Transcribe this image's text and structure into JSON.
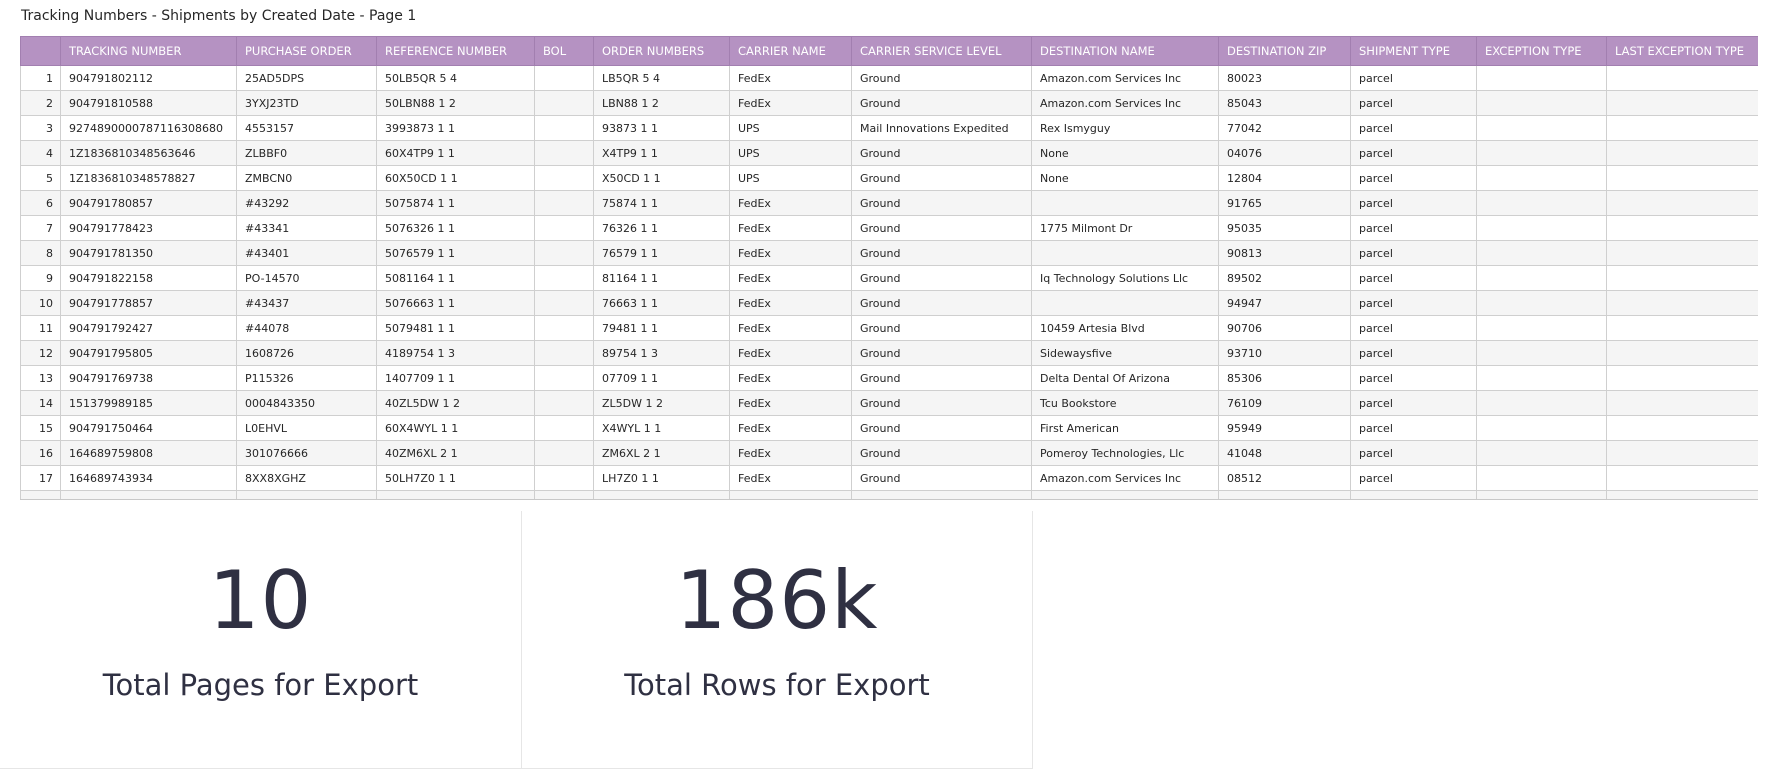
{
  "report": {
    "title": "Tracking Numbers - Shipments by Created Date - Page 1"
  },
  "table": {
    "columns": [
      "",
      "TRACKING NUMBER",
      "PURCHASE ORDER",
      "REFERENCE NUMBER",
      "BOL",
      "ORDER NUMBERS",
      "CARRIER NAME",
      "CARRIER SERVICE LEVEL",
      "DESTINATION NAME",
      "DESTINATION ZIP",
      "SHIPMENT TYPE",
      "EXCEPTION TYPE",
      "LAST EXCEPTION TYPE"
    ],
    "rows": [
      [
        "1",
        "904791802112",
        "25AD5DPS",
        "50LB5QR 5 4",
        "",
        "LB5QR 5 4",
        "FedEx",
        "Ground",
        "Amazon.com Services Inc",
        "80023",
        "parcel",
        "",
        ""
      ],
      [
        "2",
        "904791810588",
        "3YXJ23TD",
        "50LBN88 1 2",
        "",
        "LBN88 1 2",
        "FedEx",
        "Ground",
        "Amazon.com Services Inc",
        "85043",
        "parcel",
        "",
        ""
      ],
      [
        "3",
        "9274890000787116308680",
        "4553157",
        "3993873 1 1",
        "",
        "93873 1 1",
        "UPS",
        "Mail Innovations Expedited",
        "Rex Ismyguy",
        "77042",
        "parcel",
        "",
        ""
      ],
      [
        "4",
        "1Z1836810348563646",
        "ZLBBF0",
        "60X4TP9 1 1",
        "",
        "X4TP9 1 1",
        "UPS",
        "Ground",
        "None",
        "04076",
        "parcel",
        "",
        ""
      ],
      [
        "5",
        "1Z1836810348578827",
        "ZMBCN0",
        "60X50CD 1 1",
        "",
        "X50CD 1 1",
        "UPS",
        "Ground",
        "None",
        "12804",
        "parcel",
        "",
        ""
      ],
      [
        "6",
        "904791780857",
        "#43292",
        "5075874 1 1",
        "",
        "75874 1 1",
        "FedEx",
        "Ground",
        "",
        "91765",
        "parcel",
        "",
        ""
      ],
      [
        "7",
        "904791778423",
        "#43341",
        "5076326 1 1",
        "",
        "76326 1 1",
        "FedEx",
        "Ground",
        "1775 Milmont Dr",
        "95035",
        "parcel",
        "",
        ""
      ],
      [
        "8",
        "904791781350",
        "#43401",
        "5076579 1 1",
        "",
        "76579 1 1",
        "FedEx",
        "Ground",
        "",
        "90813",
        "parcel",
        "",
        ""
      ],
      [
        "9",
        "904791822158",
        "PO-14570",
        "5081164 1 1",
        "",
        "81164 1 1",
        "FedEx",
        "Ground",
        "Iq Technology Solutions Llc",
        "89502",
        "parcel",
        "",
        ""
      ],
      [
        "10",
        "904791778857",
        "#43437",
        "5076663 1 1",
        "",
        "76663 1 1",
        "FedEx",
        "Ground",
        "",
        "94947",
        "parcel",
        "",
        ""
      ],
      [
        "11",
        "904791792427",
        "#44078",
        "5079481 1 1",
        "",
        "79481 1 1",
        "FedEx",
        "Ground",
        "10459 Artesia Blvd",
        "90706",
        "parcel",
        "",
        ""
      ],
      [
        "12",
        "904791795805",
        "1608726",
        "4189754 1 3",
        "",
        "89754 1 3",
        "FedEx",
        "Ground",
        "Sidewaysfive",
        "93710",
        "parcel",
        "",
        ""
      ],
      [
        "13",
        "904791769738",
        "P115326",
        "1407709 1 1",
        "",
        "07709 1 1",
        "FedEx",
        "Ground",
        "Delta Dental Of Arizona",
        "85306",
        "parcel",
        "",
        ""
      ],
      [
        "14",
        "151379989185",
        "0004843350",
        "40ZL5DW 1 2",
        "",
        "ZL5DW 1 2",
        "FedEx",
        "Ground",
        "Tcu Bookstore",
        "76109",
        "parcel",
        "",
        ""
      ],
      [
        "15",
        "904791750464",
        "L0EHVL",
        "60X4WYL 1 1",
        "",
        "X4WYL 1 1",
        "FedEx",
        "Ground",
        "First American",
        "95949",
        "parcel",
        "",
        ""
      ],
      [
        "16",
        "164689759808",
        "301076666",
        "40ZM6XL 2 1",
        "",
        "ZM6XL 2 1",
        "FedEx",
        "Ground",
        "Pomeroy Technologies, Llc",
        "41048",
        "parcel",
        "",
        ""
      ],
      [
        "17",
        "164689743934",
        "8XX8XGHZ",
        "50LH7Z0 1 1",
        "",
        "LH7Z0 1 1",
        "FedEx",
        "Ground",
        "Amazon.com Services Inc",
        "08512",
        "parcel",
        "",
        ""
      ]
    ]
  },
  "tiles": {
    "pages": {
      "value": "10",
      "label": "Total Pages for Export"
    },
    "rows": {
      "value": "186k",
      "label": "Total Rows for Export"
    }
  },
  "colors": {
    "header_bg": "#b592c2",
    "header_text": "#ffffff",
    "stripe": "#f5f5f5",
    "big_number": "#2f3042"
  }
}
